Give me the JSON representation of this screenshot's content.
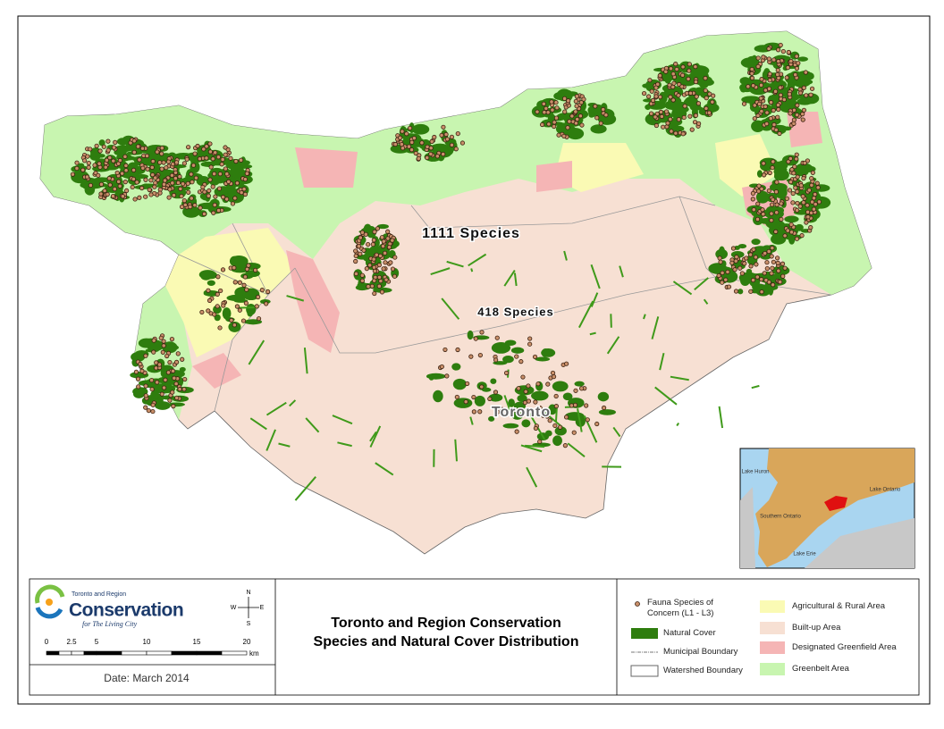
{
  "map": {
    "labels": [
      "1111 Species",
      "418 Species",
      "Toronto"
    ]
  },
  "inset": {
    "labels": [
      "Lake Huron",
      "Southern Ontario",
      "Lake Ontario",
      "Lake Erie"
    ]
  },
  "logo": {
    "org": "Toronto and Region",
    "name": "Conservation",
    "tagline": "for The Living City"
  },
  "compass": {
    "n": "N",
    "e": "E",
    "s": "S",
    "w": "W"
  },
  "scale_bar": {
    "ticks": [
      0,
      2.5,
      5,
      10,
      15,
      20
    ],
    "unit": "km"
  },
  "title": [
    "Toronto and Region Conservation",
    "Species and Natural Cover Distribution"
  ],
  "date": "Date: March 2014",
  "legend": [
    {
      "label": "Fauna Species of Concern (L1 - L3)",
      "kind": "point",
      "color": "#c98f6a"
    },
    {
      "label": "Natural Cover",
      "kind": "fill",
      "color": "#2e7d0e"
    },
    {
      "label": "Municipal Boundary",
      "kind": "line",
      "color": "#777777"
    },
    {
      "label": "Watershed Boundary",
      "kind": "outline",
      "color": "#666666"
    },
    {
      "label": "Agricultural & Rural Area",
      "kind": "fill",
      "color": "#fafab4"
    },
    {
      "label": "Built-up Area",
      "kind": "fill",
      "color": "#f7e0d3"
    },
    {
      "label": "Designated Greenfield Area",
      "kind": "fill",
      "color": "#f5b5b5"
    },
    {
      "label": "Greenbelt Area",
      "kind": "fill",
      "color": "#c8f5b0"
    }
  ]
}
